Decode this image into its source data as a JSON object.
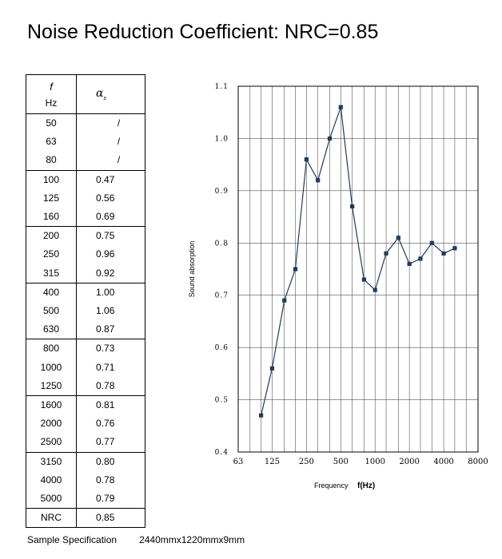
{
  "title": "Noise Reduction Coefficient: NRC=0.85",
  "table": {
    "header": {
      "f_symbol": "f",
      "f_unit": "Hz",
      "alpha_symbol": "α",
      "alpha_sub": "s"
    },
    "rows": [
      {
        "f": "50",
        "a": "/"
      },
      {
        "f": "63",
        "a": "/"
      },
      {
        "f": "80",
        "a": "/"
      },
      {
        "f": "100",
        "a": "0.47"
      },
      {
        "f": "125",
        "a": "0.56"
      },
      {
        "f": "160",
        "a": "0.69"
      },
      {
        "f": "200",
        "a": "0.75"
      },
      {
        "f": "250",
        "a": "0.96"
      },
      {
        "f": "315",
        "a": "0.92"
      },
      {
        "f": "400",
        "a": "1.00"
      },
      {
        "f": "500",
        "a": "1.06"
      },
      {
        "f": "630",
        "a": "0.87"
      },
      {
        "f": "800",
        "a": "0.73"
      },
      {
        "f": "1000",
        "a": "0.71"
      },
      {
        "f": "1250",
        "a": "0.78"
      },
      {
        "f": "1600",
        "a": "0.81"
      },
      {
        "f": "2000",
        "a": "0.76"
      },
      {
        "f": "2500",
        "a": "0.77"
      },
      {
        "f": "3150",
        "a": "0.80"
      },
      {
        "f": "4000",
        "a": "0.78"
      },
      {
        "f": "5000",
        "a": "0.79"
      },
      {
        "f": "NRC",
        "a": "0.85"
      }
    ]
  },
  "chart_data": {
    "type": "line",
    "ylabel": "Sound absorption",
    "xlabel": "Frequency",
    "xlabel_unit": "f(Hz)",
    "x_scale": "log",
    "xlim": [
      63,
      8000
    ],
    "ylim": [
      0.4,
      1.1
    ],
    "x_ticks": [
      "63",
      "125",
      "250",
      "500",
      "1000",
      "2000",
      "4000",
      "8000"
    ],
    "y_ticks": [
      "0.4",
      "0.5",
      "0.6",
      "0.7",
      "0.8",
      "0.9",
      "1.0",
      "1.1"
    ],
    "grid": true,
    "series": [
      {
        "color": "#1f3b5c",
        "x": [
          100,
          125,
          160,
          200,
          250,
          315,
          400,
          500,
          630,
          800,
          1000,
          1250,
          1600,
          2000,
          2500,
          3150,
          4000,
          5000
        ],
        "y": [
          0.47,
          0.56,
          0.69,
          0.75,
          0.96,
          0.92,
          1.0,
          1.06,
          0.87,
          0.73,
          0.71,
          0.78,
          0.81,
          0.76,
          0.77,
          0.8,
          0.78,
          0.79
        ]
      }
    ]
  },
  "spec": {
    "label": "Sample Specification",
    "value": "2440mmx1220mmx9mm"
  }
}
